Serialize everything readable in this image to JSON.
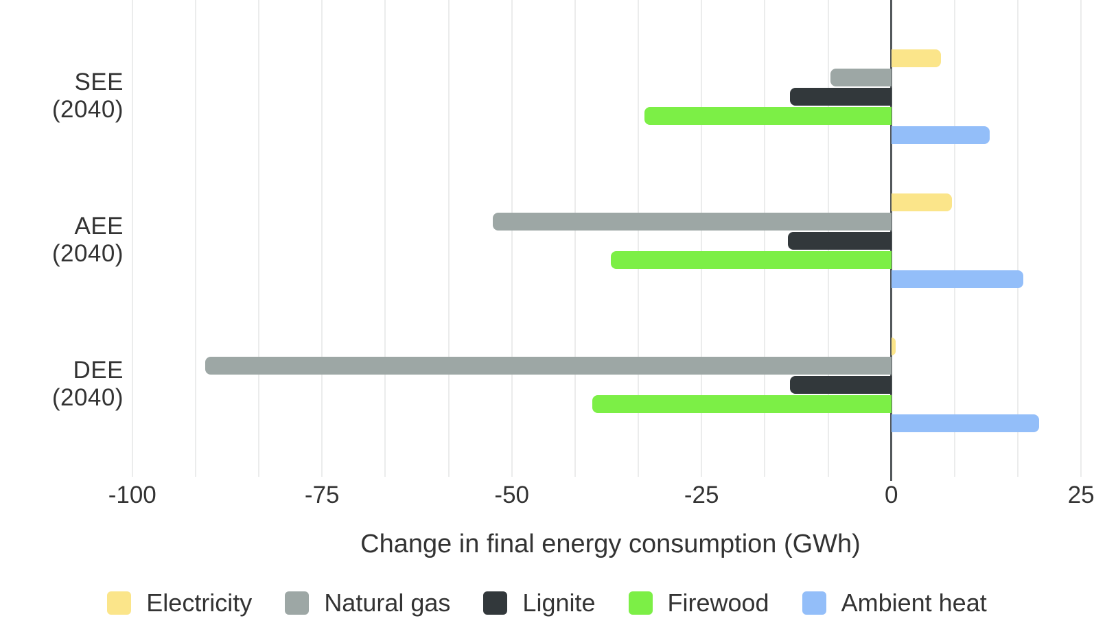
{
  "chart_data": {
    "type": "bar",
    "orientation": "horizontal",
    "xlabel": "Change in final energy consumption (GWh)",
    "categories": [
      "SEE (2040)",
      "AEE (2040)",
      "DEE (2040)"
    ],
    "series": [
      {
        "name": "Electricity",
        "color": "#fbe58a",
        "values": [
          6.5,
          8.0,
          0.6
        ]
      },
      {
        "name": "Natural gas",
        "color": "#9da7a5",
        "values": [
          -8.0,
          -52.5,
          -90.4
        ]
      },
      {
        "name": "Lignite",
        "color": "#32383b",
        "values": [
          -13.4,
          -13.6,
          -13.4
        ]
      },
      {
        "name": "Firewood",
        "color": "#7cef46",
        "values": [
          -32.5,
          -37.0,
          -39.4
        ]
      },
      {
        "name": "Ambient heat",
        "color": "#93bef9",
        "values": [
          13.0,
          17.4,
          19.5
        ]
      }
    ],
    "xticks": [
      -100,
      -75,
      -50,
      -25,
      0,
      25
    ],
    "xlim": [
      -100.7,
      26.7
    ],
    "grid": true,
    "minor_gridline_divisions": 3,
    "legend_position": "bottom",
    "style": {
      "gridline_color": "#ebecec",
      "zero_line_color": "#54595c",
      "text_color": "#333333",
      "background": "#ffffff"
    }
  }
}
